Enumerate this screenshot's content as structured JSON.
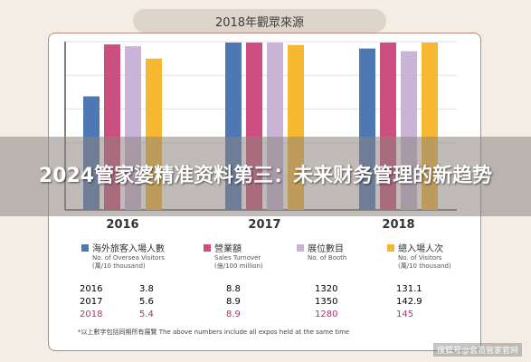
{
  "header": {
    "title": "2018年觀眾來源"
  },
  "banner": {
    "text": "2024管家婆精准资料第三：未来财务管理的新趋势"
  },
  "colors": {
    "overseas": "#4d78b4",
    "sales": "#cc4f7f",
    "booth": "#c9b3d7",
    "total": "#f7b831"
  },
  "chart_data": {
    "type": "bar",
    "categories": [
      "2016",
      "2017",
      "2018"
    ],
    "series": [
      {
        "name": "海外旅客入場人數",
        "values": [
          3.8,
          5.6,
          5.4
        ]
      },
      {
        "name": "營業額",
        "values": [
          8.8,
          8.9,
          8.9
        ]
      },
      {
        "name": "展位數目",
        "values": [
          1320,
          1350,
          1280
        ]
      },
      {
        "name": "總入場人次",
        "values": [
          131.1,
          142.9,
          145
        ]
      }
    ]
  },
  "legend": [
    {
      "label": "海外旅客入場人數",
      "en": "No. of Oversea Visitors",
      "unit": "(萬/10 thousand)"
    },
    {
      "label": "營業額",
      "en": "Sales Turnover",
      "unit": "(億/100 million)"
    },
    {
      "label": "展位數目",
      "en": "No. of Booth",
      "unit": ""
    },
    {
      "label": "總入場人次",
      "en": "No. of Visitors",
      "unit": "(萬/10 thousand)"
    }
  ],
  "table": {
    "rows": [
      {
        "year": "2016",
        "overseas": "3.8",
        "sales": "8.8",
        "booth": "1320",
        "total": "131.1"
      },
      {
        "year": "2017",
        "overseas": "5.6",
        "sales": "8.9",
        "booth": "1350",
        "total": "142.9"
      },
      {
        "year": "2018",
        "overseas": "5.4",
        "sales": "8.9",
        "booth": "1280",
        "total": "145"
      }
    ]
  },
  "note": "*以上數字包括同期所有展覽 The above numbers include all expos held at the same time",
  "watermark": "搜狐号@会员管家官网"
}
